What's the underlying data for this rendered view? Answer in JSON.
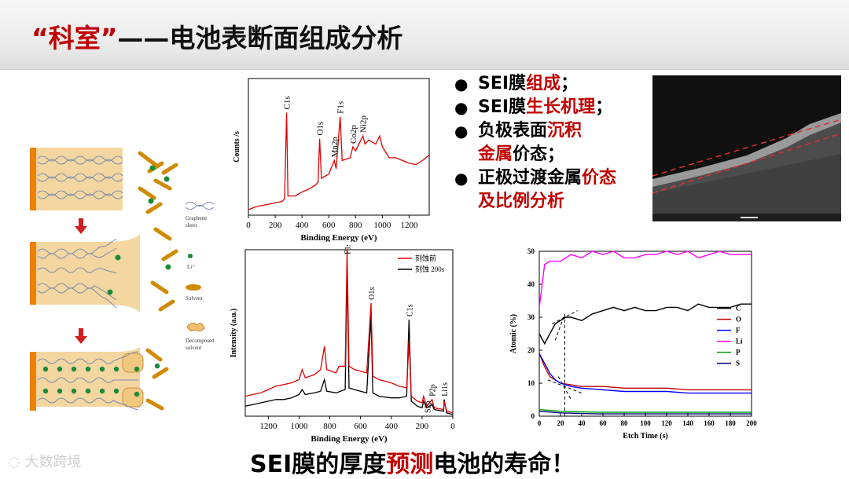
{
  "title": {
    "accent": "“科室”",
    "rest": "——电池表断面组成分析"
  },
  "bullets": [
    {
      "parts": [
        {
          "t": "SEI膜",
          "red": false
        },
        {
          "t": "组成",
          "red": true
        },
        {
          "t": "；",
          "red": false
        }
      ]
    },
    {
      "parts": [
        {
          "t": "SEI膜",
          "red": false
        },
        {
          "t": "生长机理",
          "red": true
        },
        {
          "t": "；",
          "red": false
        }
      ]
    },
    {
      "parts": [
        {
          "t": "负极表面",
          "red": false
        },
        {
          "t": "沉积",
          "red": true
        },
        {
          "t": "\n",
          "red": false
        },
        {
          "t": "金属",
          "red": true
        },
        {
          "t": "价态；",
          "red": false
        }
      ]
    },
    {
      "parts": [
        {
          "t": "正极过渡金属",
          "red": false
        },
        {
          "t": "价态",
          "red": true
        },
        {
          "t": "\n",
          "red": false
        },
        {
          "t": "及比例分析",
          "red": true
        }
      ]
    }
  ],
  "footer": {
    "pre": "SEI膜的厚度",
    "red": "预测",
    "post": "电池的寿命！"
  },
  "watermark": "大数跨境",
  "legend_labels": {
    "graphene": [
      "Graphene",
      "sheet"
    ],
    "li": "Li⁺",
    "solvent": "Solvent",
    "decomposed": [
      "Decomposed",
      "solvent"
    ]
  },
  "colors": {
    "accent": "#c00000",
    "xps_red": "#e00000",
    "xps_black": "#000000",
    "sem_line": "#e03030"
  },
  "chart_data": [
    {
      "type": "line",
      "title": "",
      "xlabel": "Binding Energy (eV)",
      "ylabel": "Counts /s",
      "xlim": [
        0,
        1350
      ],
      "xticks": [
        0,
        200,
        400,
        600,
        800,
        1000,
        1200
      ],
      "series": [
        {
          "values": [
            [
              0,
              4
            ],
            [
              50,
              6
            ],
            [
              100,
              7
            ],
            [
              150,
              8
            ],
            [
              200,
              9
            ],
            [
              250,
              10
            ],
            [
              270,
              12
            ],
            [
              285,
              75
            ],
            [
              295,
              14
            ],
            [
              350,
              14
            ],
            [
              400,
              17
            ],
            [
              450,
              19
            ],
            [
              500,
              22
            ],
            [
              520,
              24
            ],
            [
              532,
              56
            ],
            [
              545,
              27
            ],
            [
              600,
              30
            ],
            [
              641,
              40
            ],
            [
              655,
              34
            ],
            [
              685,
              72
            ],
            [
              700,
              40
            ],
            [
              760,
              42
            ],
            [
              780,
              50
            ],
            [
              800,
              47
            ],
            [
              840,
              55
            ],
            [
              855,
              58
            ],
            [
              870,
              52
            ],
            [
              900,
              55
            ],
            [
              950,
              52
            ],
            [
              980,
              58
            ],
            [
              1000,
              50
            ],
            [
              1050,
              42
            ],
            [
              1100,
              42
            ],
            [
              1150,
              40
            ],
            [
              1200,
              38
            ],
            [
              1250,
              37
            ],
            [
              1300,
              40
            ],
            [
              1350,
              44
            ]
          ]
        }
      ],
      "annotations": [
        {
          "label": "C1s",
          "x": 285
        },
        {
          "label": "O1s",
          "x": 532
        },
        {
          "label": "Mn2p",
          "x": 641
        },
        {
          "label": "F1s",
          "x": 685
        },
        {
          "label": "Co2p",
          "x": 780
        },
        {
          "label": "Ni2p",
          "x": 855
        }
      ]
    },
    {
      "type": "line",
      "title": "",
      "xlabel": "Binding Energy (eV)",
      "ylabel": "Intensity (a.u.)",
      "xlim": [
        1350,
        0
      ],
      "xticks": [
        1200,
        1000,
        800,
        600,
        400,
        200,
        0
      ],
      "series": [
        {
          "name": "刻蚀前",
          "values": [
            [
              1350,
              12
            ],
            [
              1300,
              13
            ],
            [
              1250,
              14
            ],
            [
              1200,
              16
            ],
            [
              1150,
              18
            ],
            [
              1100,
              19
            ],
            [
              1050,
              20
            ],
            [
              1000,
              22
            ],
            [
              980,
              28
            ],
            [
              960,
              23
            ],
            [
              900,
              25
            ],
            [
              860,
              28
            ],
            [
              835,
              42
            ],
            [
              820,
              28
            ],
            [
              760,
              26
            ],
            [
              740,
              30
            ],
            [
              700,
              30
            ],
            [
              688,
              100
            ],
            [
              675,
              30
            ],
            [
              640,
              28
            ],
            [
              600,
              27
            ],
            [
              560,
              26
            ],
            [
              532,
              68
            ],
            [
              520,
              24
            ],
            [
              480,
              22
            ],
            [
              400,
              20
            ],
            [
              350,
              18
            ],
            [
              300,
              17
            ],
            [
              285,
              45
            ],
            [
              270,
              12
            ],
            [
              230,
              9
            ],
            [
              200,
              8
            ],
            [
              190,
              12
            ],
            [
              170,
              6
            ],
            [
              135,
              10
            ],
            [
              120,
              5
            ],
            [
              60,
              4
            ],
            [
              56,
              9
            ],
            [
              40,
              3
            ],
            [
              0,
              2
            ]
          ]
        },
        {
          "name": "刻蚀 200s",
          "values": [
            [
              1350,
              6
            ],
            [
              1300,
              7
            ],
            [
              1250,
              8
            ],
            [
              1200,
              9
            ],
            [
              1150,
              10
            ],
            [
              1100,
              10
            ],
            [
              1050,
              11
            ],
            [
              1000,
              13
            ],
            [
              980,
              16
            ],
            [
              960,
              13
            ],
            [
              900,
              14
            ],
            [
              860,
              15
            ],
            [
              835,
              22
            ],
            [
              820,
              15
            ],
            [
              760,
              14
            ],
            [
              700,
              16
            ],
            [
              688,
              90
            ],
            [
              675,
              17
            ],
            [
              640,
              16
            ],
            [
              600,
              15
            ],
            [
              560,
              14
            ],
            [
              532,
              60
            ],
            [
              520,
              14
            ],
            [
              480,
              12
            ],
            [
              400,
              11
            ],
            [
              350,
              11
            ],
            [
              300,
              12
            ],
            [
              285,
              58
            ],
            [
              270,
              9
            ],
            [
              230,
              6
            ],
            [
              200,
              5
            ],
            [
              190,
              9
            ],
            [
              170,
              5
            ],
            [
              135,
              7
            ],
            [
              120,
              4
            ],
            [
              60,
              3
            ],
            [
              56,
              10
            ],
            [
              40,
              2
            ],
            [
              0,
              1
            ]
          ]
        }
      ],
      "annotations": [
        {
          "label": "F1s",
          "x": 688
        },
        {
          "label": "O1s",
          "x": 532
        },
        {
          "label": "C1s",
          "x": 285
        },
        {
          "label": "S2p",
          "x": 165
        },
        {
          "label": "P2p",
          "x": 135
        },
        {
          "label": "Li1s",
          "x": 56
        }
      ]
    },
    {
      "type": "line",
      "title": "",
      "xlabel": "Etch Time (s)",
      "ylabel": "Atomic (%)",
      "xlim": [
        0,
        200
      ],
      "ylim": [
        0,
        50
      ],
      "xticks": [
        0,
        20,
        40,
        60,
        80,
        100,
        120,
        140,
        160,
        180,
        200
      ],
      "yticks": [
        0,
        10,
        20,
        30,
        40,
        50
      ],
      "series": [
        {
          "name": "C",
          "color": "#000000",
          "values": [
            [
              0,
              25
            ],
            [
              5,
              22
            ],
            [
              10,
              25
            ],
            [
              15,
              28
            ],
            [
              20,
              29
            ],
            [
              25,
              30
            ],
            [
              30,
              30
            ],
            [
              40,
              29
            ],
            [
              50,
              31
            ],
            [
              60,
              32
            ],
            [
              70,
              33
            ],
            [
              80,
              32
            ],
            [
              90,
              33
            ],
            [
              100,
              32
            ],
            [
              110,
              32
            ],
            [
              120,
              33
            ],
            [
              130,
              33
            ],
            [
              140,
              32
            ],
            [
              150,
              34
            ],
            [
              160,
              33
            ],
            [
              170,
              33
            ],
            [
              180,
              33
            ],
            [
              190,
              34
            ],
            [
              200,
              34
            ]
          ]
        },
        {
          "name": "O",
          "color": "#c00000",
          "values": [
            [
              0,
              19
            ],
            [
              5,
              15
            ],
            [
              10,
              12
            ],
            [
              15,
              11
            ],
            [
              20,
              10
            ],
            [
              30,
              9.5
            ],
            [
              40,
              9
            ],
            [
              50,
              9
            ],
            [
              60,
              9
            ],
            [
              80,
              8.5
            ],
            [
              100,
              8.5
            ],
            [
              120,
              8.5
            ],
            [
              140,
              8
            ],
            [
              160,
              8
            ],
            [
              180,
              8
            ],
            [
              200,
              8
            ]
          ]
        },
        {
          "name": "F",
          "color": "#0000ff",
          "values": [
            [
              0,
              19
            ],
            [
              5,
              16
            ],
            [
              10,
              13
            ],
            [
              15,
              11
            ],
            [
              20,
              10
            ],
            [
              30,
              9
            ],
            [
              40,
              8.5
            ],
            [
              60,
              8
            ],
            [
              80,
              7.5
            ],
            [
              100,
              7.5
            ],
            [
              120,
              7.5
            ],
            [
              140,
              7
            ],
            [
              160,
              7
            ],
            [
              180,
              7
            ],
            [
              200,
              7
            ]
          ]
        },
        {
          "name": "Li",
          "color": "#ff00ff",
          "values": [
            [
              0,
              33
            ],
            [
              5,
              46
            ],
            [
              10,
              47
            ],
            [
              20,
              47
            ],
            [
              30,
              49
            ],
            [
              40,
              48
            ],
            [
              50,
              50
            ],
            [
              60,
              49
            ],
            [
              70,
              50
            ],
            [
              80,
              48
            ],
            [
              90,
              48
            ],
            [
              100,
              49
            ],
            [
              110,
              49
            ],
            [
              120,
              50
            ],
            [
              130,
              49
            ],
            [
              140,
              50
            ],
            [
              150,
              48
            ],
            [
              160,
              49
            ],
            [
              170,
              50
            ],
            [
              180,
              49
            ],
            [
              190,
              49
            ],
            [
              200,
              49
            ]
          ]
        },
        {
          "name": "P",
          "color": "#00a000",
          "values": [
            [
              0,
              2
            ],
            [
              20,
              1.5
            ],
            [
              40,
              1.3
            ],
            [
              60,
              1.2
            ],
            [
              80,
              1.2
            ],
            [
              100,
              1.2
            ],
            [
              120,
              1.2
            ],
            [
              140,
              1.2
            ],
            [
              160,
              1.2
            ],
            [
              180,
              1.2
            ],
            [
              200,
              1.2
            ]
          ]
        },
        {
          "name": "S",
          "color": "#000080",
          "values": [
            [
              0,
              1.5
            ],
            [
              20,
              1
            ],
            [
              40,
              0.8
            ],
            [
              60,
              0.7
            ],
            [
              80,
              0.7
            ],
            [
              100,
              0.7
            ],
            [
              120,
              0.7
            ],
            [
              140,
              0.7
            ],
            [
              160,
              0.7
            ],
            [
              180,
              0.7
            ],
            [
              200,
              0.7
            ]
          ]
        }
      ],
      "legend_position": "right"
    }
  ]
}
